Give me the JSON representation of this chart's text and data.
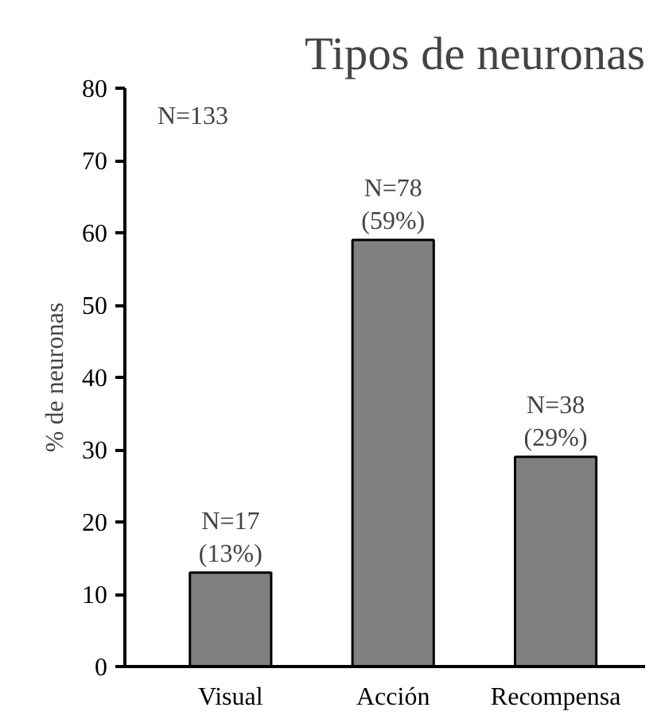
{
  "chart_data": {
    "type": "bar",
    "title": "Tipos de neuronas",
    "ylabel": "% de neuronas",
    "categories": [
      "Visual",
      "Acción",
      "Recompensa"
    ],
    "values": [
      13,
      59,
      29
    ],
    "value_labels": [
      "N=17\n(13%)",
      "N=78\n(59%)",
      "N=38\n(29%)"
    ],
    "color": "#808080",
    "annotations": [
      "N=133"
    ],
    "ylim": [
      0,
      80
    ],
    "yticks": [
      0,
      10,
      20,
      30,
      40,
      50,
      60,
      70,
      80
    ],
    "grid": false
  }
}
